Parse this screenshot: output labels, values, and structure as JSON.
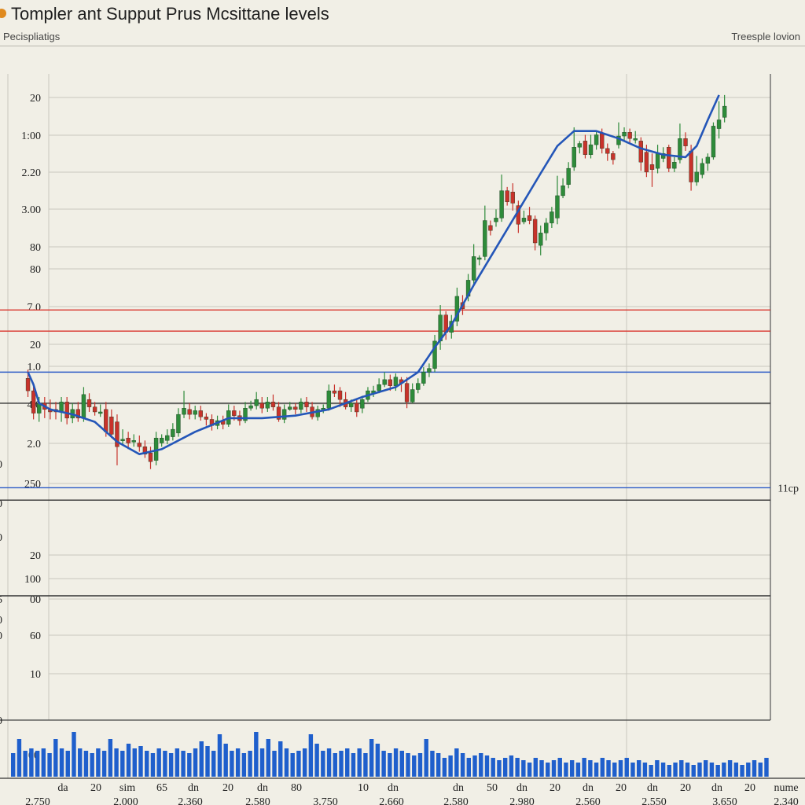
{
  "header": {
    "title": "Tompler ant Supput Prus Mcsittane levels",
    "subtitle": "Pecispliatigs",
    "top_right": "Treesple lovion"
  },
  "colors": {
    "background": "#f1efe6",
    "grid": "#c9c7be",
    "up": "#2e8b3a",
    "down": "#c8322b",
    "trend": "#2456b8",
    "volume": "#1f5fcc",
    "resistance": "#d9332b",
    "support": "#2d5cc7",
    "level_dark": "#333333"
  },
  "chart_data": {
    "type": "candlestick",
    "y_tick_labels": [
      "20",
      "1:00",
      "2.20",
      "3.00",
      "80",
      "80",
      "7.0",
      "20",
      "1.0",
      "4.0",
      "2.0",
      "250",
      "20",
      "100",
      "00",
      "60",
      "10"
    ],
    "edge_labels": [
      "0",
      "0",
      "0",
      "5",
      "0",
      "0",
      "0",
      "00"
    ],
    "x_tick_labels": [
      "da",
      "20",
      "sim",
      "65",
      "dn",
      "20",
      "dn",
      "80",
      "10",
      "dn",
      "dn",
      "50",
      "dn",
      "20",
      "dn",
      "20",
      "dn",
      "20",
      "dn",
      "20",
      "nume"
    ],
    "x_tick_labels_2": [
      "2,750",
      "2,000",
      "2,360",
      "2,580",
      "3,750",
      "2,660",
      "2,580",
      "2,980",
      "2,560",
      "2,550",
      "3,650",
      "2,340"
    ],
    "level_lines": [
      {
        "type": "resistance",
        "value": 33
      },
      {
        "type": "resistance",
        "value": 31.3
      },
      {
        "type": "support",
        "value": 28
      },
      {
        "type": "neutral",
        "value": 25.5
      },
      {
        "type": "support",
        "value": 18.7,
        "label": "11cp"
      },
      {
        "type": "neutral",
        "value": 17.7
      },
      {
        "type": "neutral",
        "value": 10
      }
    ],
    "candles": [
      [
        27.5,
        26.5,
        28.2,
        26.0
      ],
      [
        26.5,
        24.7,
        27.0,
        24.2
      ],
      [
        24.7,
        25.5,
        26.0,
        24.0
      ],
      [
        25.5,
        25.0,
        26.0,
        24.3
      ],
      [
        25.0,
        24.8,
        25.8,
        24.2
      ],
      [
        25.0,
        24.8,
        25.6,
        24.2
      ],
      [
        24.8,
        25.6,
        26.0,
        24.0
      ],
      [
        25.6,
        24.3,
        26.0,
        23.8
      ],
      [
        24.3,
        25.0,
        25.5,
        23.9
      ],
      [
        25.0,
        24.3,
        25.6,
        24.0
      ],
      [
        24.3,
        26.2,
        26.8,
        24.0
      ],
      [
        25.8,
        25.2,
        26.3,
        24.8
      ],
      [
        25.2,
        24.8,
        25.6,
        24.5
      ],
      [
        24.8,
        24.8,
        25.4,
        24.4
      ],
      [
        25.0,
        23.2,
        25.6,
        22.8
      ],
      [
        24.4,
        23.0,
        25.0,
        22.7
      ],
      [
        24.0,
        22.0,
        24.6,
        20.5
      ],
      [
        22.6,
        22.6,
        23.4,
        22.2
      ],
      [
        22.7,
        22.3,
        23.2,
        21.8
      ],
      [
        22.5,
        22.5,
        23.0,
        22.0
      ],
      [
        22.3,
        22.0,
        22.9,
        21.6
      ],
      [
        22.0,
        21.4,
        22.5,
        21.1
      ],
      [
        21.5,
        20.8,
        22.0,
        20.2
      ],
      [
        20.9,
        22.7,
        23.2,
        20.5
      ],
      [
        22.3,
        22.7,
        23.0,
        22.0
      ],
      [
        22.5,
        22.9,
        23.4,
        22.2
      ],
      [
        22.8,
        23.4,
        23.9,
        22.5
      ],
      [
        23.1,
        24.6,
        25.1,
        22.8
      ],
      [
        24.6,
        25.1,
        26.5,
        24.3
      ],
      [
        25.0,
        24.6,
        25.5,
        24.2
      ],
      [
        24.6,
        24.9,
        25.3,
        24.2
      ],
      [
        24.9,
        24.4,
        25.3,
        24.1
      ],
      [
        24.4,
        24.2,
        24.7,
        23.7
      ],
      [
        24.2,
        23.7,
        24.6,
        23.3
      ],
      [
        23.7,
        24.1,
        24.5,
        23.4
      ],
      [
        24.1,
        23.8,
        24.5,
        23.4
      ],
      [
        23.8,
        24.9,
        25.4,
        23.6
      ],
      [
        24.9,
        24.5,
        25.3,
        24.1
      ],
      [
        24.5,
        24.1,
        24.9,
        23.7
      ],
      [
        24.1,
        25.1,
        25.6,
        23.9
      ],
      [
        25.1,
        25.3,
        25.7,
        24.9
      ],
      [
        25.3,
        25.8,
        26.4,
        25.0
      ],
      [
        25.5,
        25.1,
        26.0,
        24.7
      ],
      [
        25.1,
        25.6,
        26.0,
        24.8
      ],
      [
        25.6,
        25.2,
        26.2,
        24.9
      ],
      [
        25.2,
        24.2,
        25.6,
        24.0
      ],
      [
        24.2,
        25.0,
        25.4,
        23.9
      ],
      [
        25.0,
        25.2,
        25.6,
        24.9
      ],
      [
        25.2,
        25.0,
        25.5,
        24.6
      ],
      [
        25.0,
        25.6,
        25.9,
        24.7
      ],
      [
        25.6,
        25.2,
        26.0,
        24.8
      ],
      [
        25.2,
        24.4,
        25.6,
        24.2
      ],
      [
        24.4,
        25.0,
        25.3,
        24.1
      ],
      [
        25.0,
        25.1,
        25.4,
        24.7
      ],
      [
        25.1,
        26.5,
        27.0,
        24.9
      ],
      [
        26.5,
        26.3,
        27.0,
        26.0
      ],
      [
        26.5,
        25.8,
        26.8,
        25.2
      ],
      [
        25.8,
        25.2,
        26.4,
        25.0
      ],
      [
        25.2,
        25.5,
        25.8,
        24.8
      ],
      [
        25.5,
        24.8,
        25.9,
        24.4
      ],
      [
        25.1,
        25.8,
        26.1,
        24.7
      ],
      [
        25.8,
        26.5,
        26.8,
        25.6
      ],
      [
        26.3,
        26.5,
        26.9,
        26.0
      ],
      [
        26.5,
        27.0,
        27.5,
        26.3
      ],
      [
        27.0,
        27.4,
        28.0,
        26.8
      ],
      [
        27.4,
        26.9,
        27.8,
        26.5
      ],
      [
        26.9,
        27.6,
        27.9,
        26.5
      ],
      [
        27.4,
        27.1,
        27.6,
        26.4
      ],
      [
        27.1,
        25.6,
        27.6,
        25.1
      ],
      [
        25.6,
        26.6,
        27.1,
        25.5
      ],
      [
        26.6,
        27.1,
        27.5,
        26.3
      ],
      [
        27.1,
        28.0,
        28.4,
        26.9
      ],
      [
        28.0,
        28.3,
        28.7,
        27.6
      ],
      [
        28.3,
        30.5,
        31.0,
        28.0
      ],
      [
        30.5,
        32.6,
        33.4,
        29.8
      ],
      [
        32.6,
        31.2,
        32.9,
        30.6
      ],
      [
        31.2,
        32.1,
        32.6,
        30.7
      ],
      [
        32.1,
        34.1,
        34.8,
        31.7
      ],
      [
        33.6,
        33.1,
        34.2,
        32.6
      ],
      [
        34.1,
        35.4,
        35.9,
        33.7
      ],
      [
        35.4,
        37.3,
        38.3,
        35.1
      ],
      [
        37.1,
        37.2,
        37.4,
        36.6
      ],
      [
        37.3,
        40.2,
        41.4,
        37.0
      ],
      [
        39.8,
        39.4,
        40.2,
        39.0
      ],
      [
        40.1,
        40.4,
        41.1,
        39.7
      ],
      [
        40.4,
        42.6,
        43.9,
        40.1
      ],
      [
        42.6,
        41.7,
        42.9,
        41.4
      ],
      [
        42.5,
        41.6,
        43.2,
        41.0
      ],
      [
        41.4,
        39.9,
        41.8,
        39.2
      ],
      [
        40.1,
        40.4,
        41.0,
        39.9
      ],
      [
        40.6,
        40.2,
        41.3,
        39.9
      ],
      [
        40.3,
        38.4,
        40.6,
        37.8
      ],
      [
        38.2,
        39.2,
        39.8,
        37.4
      ],
      [
        39.2,
        40.0,
        40.4,
        38.6
      ],
      [
        40.0,
        40.9,
        41.3,
        39.6
      ],
      [
        40.4,
        42.2,
        43.8,
        39.9
      ],
      [
        42.2,
        43.0,
        43.6,
        42.0
      ],
      [
        43.1,
        44.4,
        44.9,
        42.8
      ],
      [
        44.5,
        46.1,
        47.7,
        44.2
      ],
      [
        46.1,
        46.4,
        46.6,
        45.6
      ],
      [
        46.6,
        45.5,
        47.1,
        45.2
      ],
      [
        45.5,
        46.3,
        47.1,
        45.2
      ],
      [
        46.3,
        47.1,
        47.4,
        45.9
      ],
      [
        47.2,
        46.0,
        47.6,
        45.6
      ],
      [
        46.0,
        45.6,
        46.4,
        45.0
      ],
      [
        45.6,
        45.1,
        45.8,
        44.7
      ],
      [
        46.3,
        47.0,
        48.1,
        46.0
      ],
      [
        47.0,
        47.3,
        47.7,
        46.6
      ],
      [
        47.3,
        46.8,
        47.6,
        46.4
      ],
      [
        46.8,
        46.8,
        47.4,
        46.4
      ],
      [
        46.6,
        44.9,
        46.9,
        44.2
      ],
      [
        45.7,
        44.1,
        46.3,
        43.7
      ],
      [
        44.7,
        44.3,
        45.6,
        42.9
      ],
      [
        44.4,
        45.6,
        46.3,
        44.0
      ],
      [
        45.2,
        45.6,
        46.1,
        44.9
      ],
      [
        46.1,
        44.4,
        46.3,
        44.1
      ],
      [
        44.4,
        44.9,
        45.3,
        44.1
      ],
      [
        45.1,
        46.8,
        48.0,
        44.8
      ],
      [
        46.8,
        46.2,
        47.3,
        45.8
      ],
      [
        45.8,
        43.3,
        46.3,
        42.6
      ],
      [
        43.3,
        44.1,
        45.4,
        43.0
      ],
      [
        43.9,
        44.8,
        45.2,
        43.6
      ],
      [
        44.8,
        45.3,
        45.6,
        44.2
      ],
      [
        45.3,
        47.8,
        48.1,
        45.1
      ],
      [
        47.6,
        48.3,
        49.8,
        46.8
      ],
      [
        48.5,
        49.4,
        50.3,
        48.1
      ]
    ],
    "trend_line": [
      [
        0,
        28
      ],
      [
        1,
        27
      ],
      [
        2,
        25.5
      ],
      [
        4,
        25
      ],
      [
        8,
        24.6
      ],
      [
        12,
        24
      ],
      [
        16,
        22.4
      ],
      [
        20,
        21.4
      ],
      [
        24,
        21.8
      ],
      [
        30,
        23.2
      ],
      [
        36,
        24.3
      ],
      [
        42,
        24.3
      ],
      [
        48,
        24.5
      ],
      [
        54,
        25
      ],
      [
        60,
        26
      ],
      [
        66,
        26.8
      ],
      [
        70,
        28
      ],
      [
        73,
        30
      ],
      [
        76,
        31.8
      ],
      [
        80,
        35
      ],
      [
        84,
        38
      ],
      [
        88,
        41
      ],
      [
        92,
        44
      ],
      [
        95,
        46.2
      ],
      [
        98,
        47.4
      ],
      [
        102,
        47.4
      ],
      [
        106,
        46.8
      ],
      [
        110,
        46
      ],
      [
        114,
        45.5
      ],
      [
        118,
        45.3
      ],
      [
        120,
        46.2
      ],
      [
        122,
        48.3
      ],
      [
        124,
        50.3
      ]
    ],
    "volume": [
      0.5,
      0.8,
      0.55,
      0.6,
      0.55,
      0.6,
      0.5,
      0.8,
      0.6,
      0.55,
      0.95,
      0.6,
      0.55,
      0.5,
      0.6,
      0.55,
      0.8,
      0.6,
      0.55,
      0.7,
      0.6,
      0.65,
      0.55,
      0.5,
      0.6,
      0.55,
      0.5,
      0.6,
      0.55,
      0.5,
      0.6,
      0.75,
      0.65,
      0.55,
      0.9,
      0.7,
      0.55,
      0.6,
      0.5,
      0.55,
      0.95,
      0.6,
      0.8,
      0.55,
      0.75,
      0.6,
      0.5,
      0.55,
      0.6,
      0.9,
      0.7,
      0.55,
      0.6,
      0.5,
      0.55,
      0.6,
      0.5,
      0.6,
      0.5,
      0.8,
      0.7,
      0.55,
      0.5,
      0.6,
      0.55,
      0.5,
      0.45,
      0.5,
      0.8,
      0.55,
      0.5,
      0.4,
      0.45,
      0.6,
      0.5,
      0.4,
      0.45,
      0.5,
      0.45,
      0.4,
      0.35,
      0.4,
      0.45,
      0.4,
      0.35,
      0.3,
      0.4,
      0.35,
      0.3,
      0.35,
      0.4,
      0.3,
      0.35,
      0.3,
      0.4,
      0.35,
      0.3,
      0.4,
      0.35,
      0.3,
      0.35,
      0.4,
      0.3,
      0.35,
      0.3,
      0.25,
      0.35,
      0.3,
      0.25,
      0.3,
      0.35,
      0.3,
      0.25,
      0.3,
      0.35,
      0.3,
      0.25,
      0.3,
      0.35,
      0.3,
      0.25,
      0.3,
      0.35,
      0.3,
      0.4
    ]
  }
}
